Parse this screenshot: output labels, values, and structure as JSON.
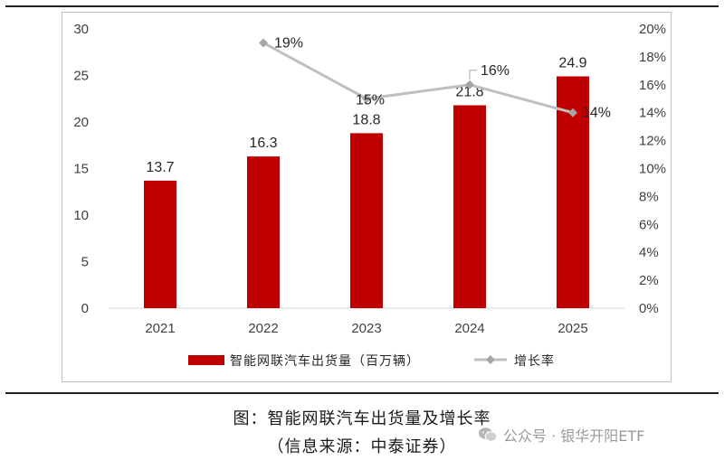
{
  "caption": "图：智能网联汽车出货量及增长率",
  "source": "（信息来源：中泰证券）",
  "watermark_text": "公众号 · 银华开阳ETF",
  "colors": {
    "bar": "#c00000",
    "line": "#bfbfbf",
    "marker": "#a6a6a6"
  },
  "chart_data": {
    "type": "bar",
    "categories": [
      "2021",
      "2022",
      "2023",
      "2024",
      "2025"
    ],
    "series": [
      {
        "name": "智能网联汽车出货量（百万辆）",
        "type": "bar",
        "axis": "left",
        "values": [
          13.7,
          16.3,
          18.8,
          21.8,
          24.9
        ],
        "labels": [
          "13.7",
          "16.3",
          "18.8",
          "21.8",
          "24.9"
        ]
      },
      {
        "name": "增长率",
        "type": "line",
        "axis": "right",
        "values": [
          null,
          19,
          15,
          16,
          14
        ],
        "labels": [
          "",
          "19%",
          "15%",
          "16%",
          "14%"
        ]
      }
    ],
    "ylim_left": [
      0,
      30
    ],
    "yticks_left": [
      "0",
      "5",
      "10",
      "15",
      "20",
      "25",
      "30"
    ],
    "ylim_right": [
      0,
      20
    ],
    "yticks_right": [
      "0%",
      "2%",
      "4%",
      "6%",
      "8%",
      "10%",
      "12%",
      "14%",
      "16%",
      "18%",
      "20%"
    ],
    "grid": false,
    "legend": "bottom"
  }
}
